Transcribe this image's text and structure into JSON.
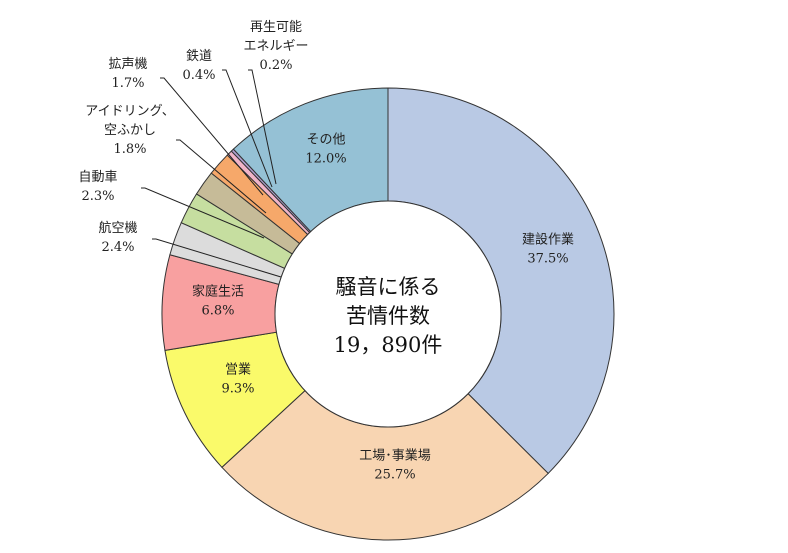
{
  "chart_data": {
    "type": "pie",
    "donut": true,
    "center_text": [
      "騒音に係る",
      "苦情件数",
      "19，890件"
    ],
    "slices": [
      {
        "name": "建設作業",
        "value": 37.5,
        "label": "37.5%",
        "color": "#b9c9e4"
      },
      {
        "name": "工場･事業場",
        "value": 25.7,
        "label": "25.7%",
        "color": "#f8d5b2"
      },
      {
        "name": "営業",
        "value": 9.3,
        "label": "9.3%",
        "color": "#fafa6a"
      },
      {
        "name": "家庭生活",
        "value": 6.8,
        "label": "6.8%",
        "color": "#f8a0a0"
      },
      {
        "name": "航空機",
        "value": 2.4,
        "label": "2.4%",
        "color": "#dcdcdc"
      },
      {
        "name": "自動車",
        "value": 2.3,
        "label": "2.3%",
        "color": "#c6dea0"
      },
      {
        "name": "アイドリング、空ふかし",
        "display": [
          "アイドリング、",
          "空ふかし"
        ],
        "value": 1.8,
        "label": "1.8%",
        "color": "#c6bb98"
      },
      {
        "name": "拡声機",
        "value": 1.7,
        "label": "1.7%",
        "color": "#f6a86a"
      },
      {
        "name": "鉄道",
        "value": 0.4,
        "label": "0.4%",
        "color": "#f0b4c8"
      },
      {
        "name": "再生可能エネルギー",
        "display": [
          "再生可能",
          "エネルギー"
        ],
        "value": 0.2,
        "label": "0.2%",
        "color": "#b0a0d0"
      },
      {
        "name": "その他",
        "value": 12.0,
        "label": "12.0%",
        "color": "#95c1d5"
      }
    ]
  }
}
